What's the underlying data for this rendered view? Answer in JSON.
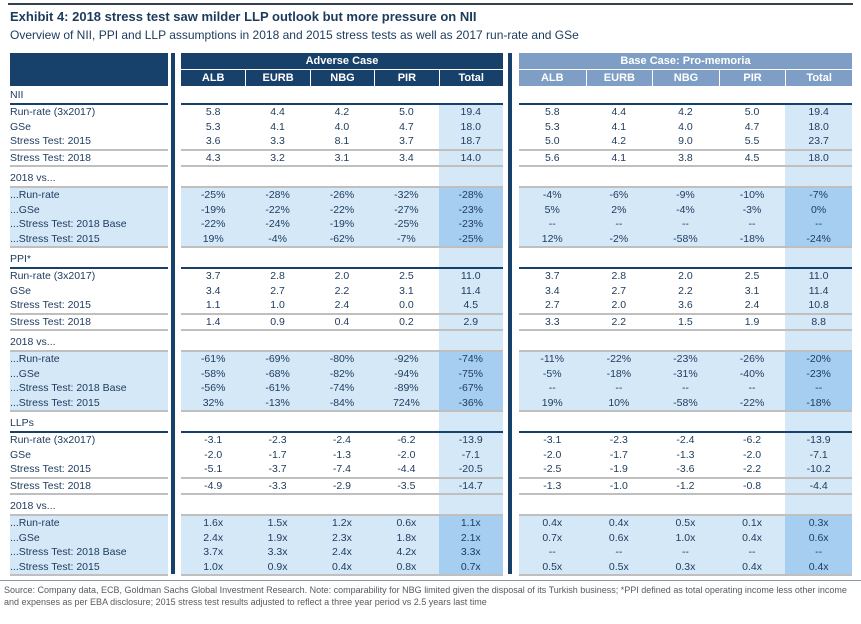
{
  "colors": {
    "navy": "#17416B",
    "steel_blue": "#7E9EC5",
    "light_blue": "#D5E8F8",
    "medium_blue": "#A6CEF1",
    "separator_gray": "#BFBFBF",
    "text_navy": "#1C3A5C",
    "footnote_gray": "#5A5A5A"
  },
  "chart_data": {
    "type": "table",
    "title": "Exhibit 4: 2018 stress test saw milder LLP outlook but more pressure on NII",
    "subtitle": "Overview of NII, PPI and LLP assumptions in 2018 and 2015 stress tests as well as 2017 run-rate and GSe",
    "column_groups": [
      "Adverse Case",
      "Base Case: Pro-memoria"
    ],
    "columns": [
      "ALB",
      "EURB",
      "NBG",
      "PIR",
      "Total"
    ],
    "sections": [
      {
        "label": "NII",
        "type": "values",
        "rows": [
          {
            "label": "Run-rate (3x2017)",
            "adverse": [
              "5.8",
              "4.4",
              "4.2",
              "5.0",
              "19.4"
            ],
            "base": [
              "5.8",
              "4.4",
              "4.2",
              "5.0",
              "19.4"
            ]
          },
          {
            "label": "GSe",
            "adverse": [
              "5.3",
              "4.1",
              "4.0",
              "4.7",
              "18.0"
            ],
            "base": [
              "5.3",
              "4.1",
              "4.0",
              "4.7",
              "18.0"
            ]
          },
          {
            "label": "Stress Test: 2015",
            "adverse": [
              "3.6",
              "3.3",
              "8.1",
              "3.7",
              "18.7"
            ],
            "base": [
              "5.0",
              "4.2",
              "9.0",
              "5.5",
              "23.7"
            ]
          },
          {
            "label": "Stress Test: 2018",
            "adverse": [
              "4.3",
              "3.2",
              "3.1",
              "3.4",
              "14.0"
            ],
            "base": [
              "5.6",
              "4.1",
              "3.8",
              "4.5",
              "18.0"
            ]
          }
        ]
      },
      {
        "label": "2018 vs...",
        "type": "comparison",
        "rows": [
          {
            "label": "...Run-rate",
            "adverse": [
              "-25%",
              "-28%",
              "-26%",
              "-32%",
              "-28%"
            ],
            "base": [
              "-4%",
              "-6%",
              "-9%",
              "-10%",
              "-7%"
            ]
          },
          {
            "label": "...GSe",
            "adverse": [
              "-19%",
              "-22%",
              "-22%",
              "-27%",
              "-23%"
            ],
            "base": [
              "5%",
              "2%",
              "-4%",
              "-3%",
              "0%"
            ]
          },
          {
            "label": "...Stress Test: 2018 Base",
            "adverse": [
              "-22%",
              "-24%",
              "-19%",
              "-25%",
              "-23%"
            ],
            "base": [
              "--",
              "--",
              "--",
              "--",
              "--"
            ]
          },
          {
            "label": "...Stress Test: 2015",
            "adverse": [
              "19%",
              "-4%",
              "-62%",
              "-7%",
              "-25%"
            ],
            "base": [
              "12%",
              "-2%",
              "-58%",
              "-18%",
              "-24%"
            ]
          }
        ]
      },
      {
        "label": "PPI*",
        "type": "values",
        "rows": [
          {
            "label": "Run-rate (3x2017)",
            "adverse": [
              "3.7",
              "2.8",
              "2.0",
              "2.5",
              "11.0"
            ],
            "base": [
              "3.7",
              "2.8",
              "2.0",
              "2.5",
              "11.0"
            ]
          },
          {
            "label": "GSe",
            "adverse": [
              "3.4",
              "2.7",
              "2.2",
              "3.1",
              "11.4"
            ],
            "base": [
              "3.4",
              "2.7",
              "2.2",
              "3.1",
              "11.4"
            ]
          },
          {
            "label": "Stress Test: 2015",
            "adverse": [
              "1.1",
              "1.0",
              "2.4",
              "0.0",
              "4.5"
            ],
            "base": [
              "2.7",
              "2.0",
              "3.6",
              "2.4",
              "10.8"
            ]
          },
          {
            "label": "Stress Test: 2018",
            "adverse": [
              "1.4",
              "0.9",
              "0.4",
              "0.2",
              "2.9"
            ],
            "base": [
              "3.3",
              "2.2",
              "1.5",
              "1.9",
              "8.8"
            ]
          }
        ]
      },
      {
        "label": "2018 vs...",
        "type": "comparison",
        "rows": [
          {
            "label": "...Run-rate",
            "adverse": [
              "-61%",
              "-69%",
              "-80%",
              "-92%",
              "-74%"
            ],
            "base": [
              "-11%",
              "-22%",
              "-23%",
              "-26%",
              "-20%"
            ]
          },
          {
            "label": "...GSe",
            "adverse": [
              "-58%",
              "-68%",
              "-82%",
              "-94%",
              "-75%"
            ],
            "base": [
              "-5%",
              "-18%",
              "-31%",
              "-40%",
              "-23%"
            ]
          },
          {
            "label": "...Stress Test: 2018 Base",
            "adverse": [
              "-56%",
              "-61%",
              "-74%",
              "-89%",
              "-67%"
            ],
            "base": [
              "--",
              "--",
              "--",
              "--",
              "--"
            ]
          },
          {
            "label": "...Stress Test: 2015",
            "adverse": [
              "32%",
              "-13%",
              "-84%",
              "724%",
              "-36%"
            ],
            "base": [
              "19%",
              "10%",
              "-58%",
              "-22%",
              "-18%"
            ]
          }
        ]
      },
      {
        "label": "LLPs",
        "type": "values",
        "rows": [
          {
            "label": "Run-rate (3x2017)",
            "adverse": [
              "-3.1",
              "-2.3",
              "-2.4",
              "-6.2",
              "-13.9"
            ],
            "base": [
              "-3.1",
              "-2.3",
              "-2.4",
              "-6.2",
              "-13.9"
            ]
          },
          {
            "label": "GSe",
            "adverse": [
              "-2.0",
              "-1.7",
              "-1.3",
              "-2.0",
              "-7.1"
            ],
            "base": [
              "-2.0",
              "-1.7",
              "-1.3",
              "-2.0",
              "-7.1"
            ]
          },
          {
            "label": "Stress Test: 2015",
            "adverse": [
              "-5.1",
              "-3.7",
              "-7.4",
              "-4.4",
              "-20.5"
            ],
            "base": [
              "-2.5",
              "-1.9",
              "-3.6",
              "-2.2",
              "-10.2"
            ]
          },
          {
            "label": "Stress Test: 2018",
            "adverse": [
              "-4.9",
              "-3.3",
              "-2.9",
              "-3.5",
              "-14.7"
            ],
            "base": [
              "-1.3",
              "-1.0",
              "-1.2",
              "-0.8",
              "-4.4"
            ]
          }
        ]
      },
      {
        "label": "2018 vs...",
        "type": "comparison",
        "rows": [
          {
            "label": "...Run-rate",
            "adverse": [
              "1.6x",
              "1.5x",
              "1.2x",
              "0.6x",
              "1.1x"
            ],
            "base": [
              "0.4x",
              "0.4x",
              "0.5x",
              "0.1x",
              "0.3x"
            ]
          },
          {
            "label": "...GSe",
            "adverse": [
              "2.4x",
              "1.9x",
              "2.3x",
              "1.8x",
              "2.1x"
            ],
            "base": [
              "0.7x",
              "0.6x",
              "1.0x",
              "0.4x",
              "0.6x"
            ]
          },
          {
            "label": "...Stress Test: 2018 Base",
            "adverse": [
              "3.7x",
              "3.3x",
              "2.4x",
              "4.2x",
              "3.3x"
            ],
            "base": [
              "--",
              "--",
              "--",
              "--",
              "--"
            ]
          },
          {
            "label": "...Stress Test: 2015",
            "adverse": [
              "1.0x",
              "0.9x",
              "0.4x",
              "0.8x",
              "0.7x"
            ],
            "base": [
              "0.5x",
              "0.5x",
              "0.3x",
              "0.4x",
              "0.4x"
            ]
          }
        ]
      }
    ],
    "footnote": "Source: Company data, ECB, Goldman Sachs Global Investment Research. Note: comparability for NBG limited given the disposal of its Turkish business; *PPI defined as total operating income less other income and expenses as per EBA disclosure; 2015 stress test results adjusted to reflect a three year period vs 2.5 years last time"
  }
}
